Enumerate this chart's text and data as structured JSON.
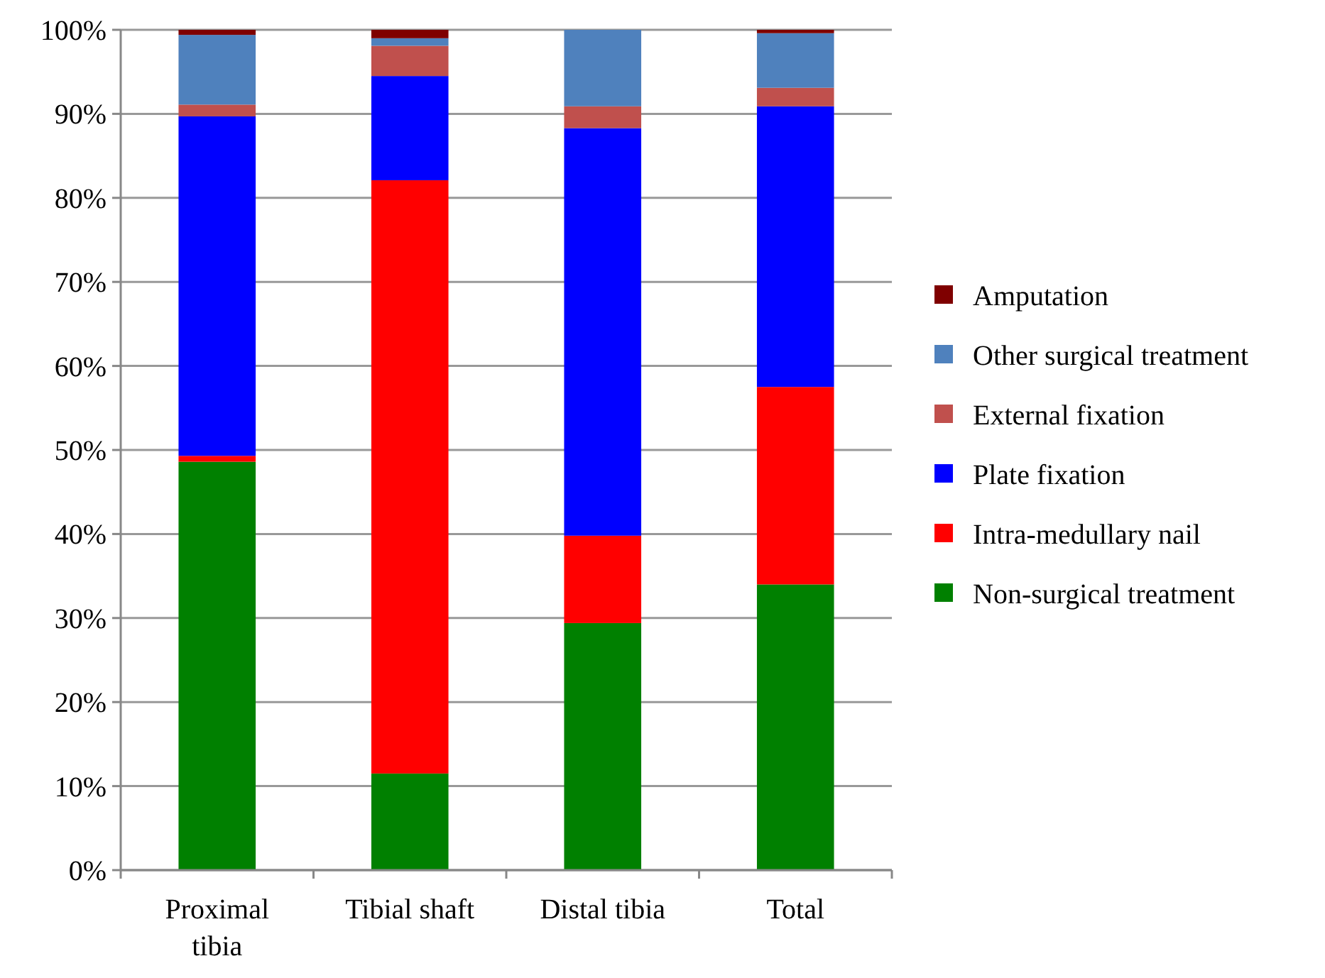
{
  "chart_data": {
    "type": "bar",
    "stacked": true,
    "categories": [
      "Proximal tibia",
      "Tibial shaft",
      "Distal tibia",
      "Total"
    ],
    "series": [
      {
        "name": "Non-surgical treatment",
        "color": "#008000",
        "values": [
          48.6,
          11.5,
          29.4,
          34.0
        ]
      },
      {
        "name": "Intra-medullary nail",
        "color": "#ff0000",
        "values": [
          0.7,
          70.6,
          10.4,
          23.5
        ]
      },
      {
        "name": "Plate fixation",
        "color": "#0000ff",
        "values": [
          40.4,
          12.4,
          48.5,
          33.4
        ]
      },
      {
        "name": "External fixation",
        "color": "#c0504d",
        "values": [
          1.4,
          3.6,
          2.6,
          2.2
        ]
      },
      {
        "name": "Other surgical treatment",
        "color": "#4f81bd",
        "values": [
          8.3,
          0.9,
          9.1,
          6.5
        ]
      },
      {
        "name": "Amputation",
        "color": "#7f0000",
        "values": [
          0.6,
          1.0,
          0,
          0.4
        ]
      }
    ],
    "ylim": [
      0,
      100
    ],
    "yticks": [
      {
        "value": 0,
        "label": "0%"
      },
      {
        "value": 10,
        "label": "10%"
      },
      {
        "value": 20,
        "label": "20%"
      },
      {
        "value": 30,
        "label": "30%"
      },
      {
        "value": 40,
        "label": "40%"
      },
      {
        "value": 50,
        "label": "50%"
      },
      {
        "value": 60,
        "label": "60%"
      },
      {
        "value": 70,
        "label": "70%"
      },
      {
        "value": 80,
        "label": "80%"
      },
      {
        "value": 90,
        "label": "90%"
      },
      {
        "value": 100,
        "label": "100%"
      }
    ],
    "grid": "y",
    "legend": "right"
  }
}
